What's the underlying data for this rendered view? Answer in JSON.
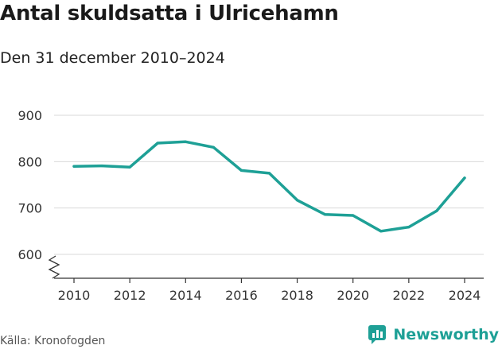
{
  "header": {
    "title": "Antal skuldsatta i Ulricehamn",
    "subtitle": "Den 31 december 2010–2024"
  },
  "footer": {
    "source": "Källa: Kronofogden",
    "brand": "Newsworthy"
  },
  "colors": {
    "line": "#1ea096",
    "grid": "#d9d9d9",
    "axis": "#333333",
    "brand": "#1ea096"
  },
  "icons": {
    "brand_logo": "newsworthy-logo-icon",
    "axis_break": "axis-break-icon"
  },
  "chart_data": {
    "type": "line",
    "title": "Antal skuldsatta i Ulricehamn",
    "subtitle": "Den 31 december 2010–2024",
    "xlabel": "",
    "ylabel": "",
    "x": [
      2010,
      2011,
      2012,
      2013,
      2014,
      2015,
      2016,
      2017,
      2018,
      2019,
      2020,
      2021,
      2022,
      2023,
      2024
    ],
    "series": [
      {
        "name": "Antal skuldsatta",
        "values": [
          790,
          791,
          788,
          840,
          843,
          831,
          781,
          775,
          717,
          686,
          684,
          650,
          659,
          694,
          765
        ]
      }
    ],
    "x_ticks": [
      2010,
      2012,
      2014,
      2016,
      2018,
      2020,
      2022,
      2024
    ],
    "y_ticks": [
      600,
      700,
      800,
      900
    ],
    "xlim": [
      2010,
      2024
    ],
    "ylim": [
      560,
      915
    ],
    "y_axis_break": true,
    "grid": true,
    "legend": "none"
  }
}
